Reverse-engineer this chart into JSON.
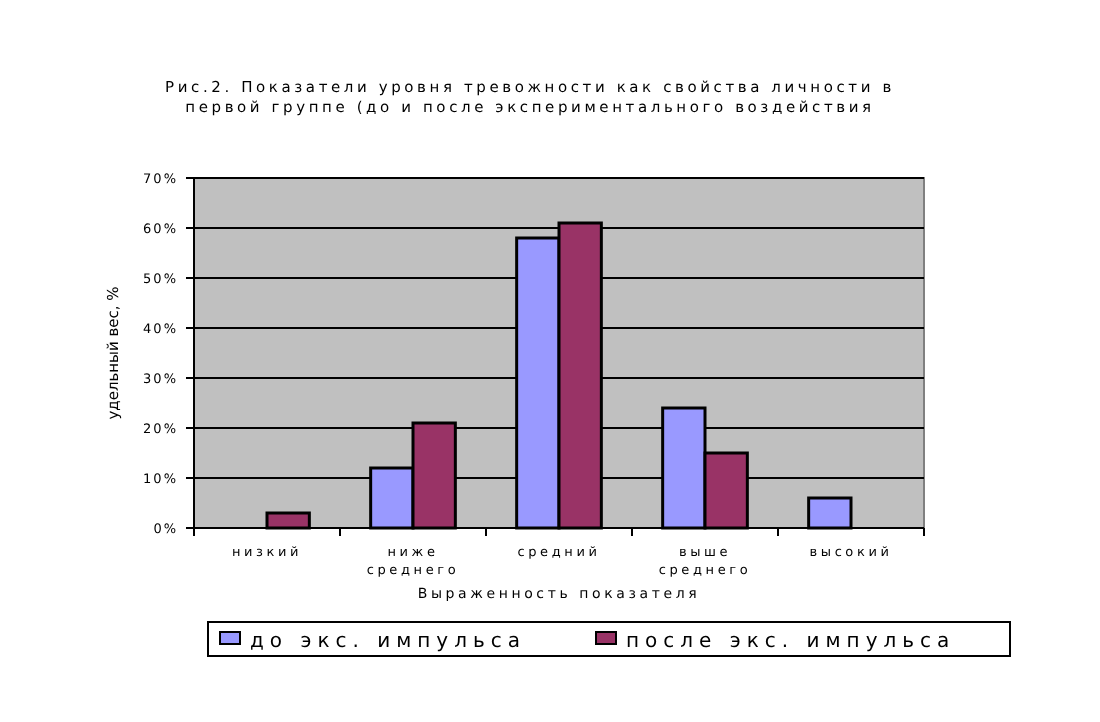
{
  "chart_data": {
    "type": "bar",
    "title": "Рис.2. Показатели уровня тревожности как свойства личности в первой группе (до и после экспериментального воздействия",
    "xlabel": "Выраженность показателя",
    "ylabel": "удельный вес, %",
    "categories": [
      "низкий",
      "ниже среднего",
      "средний",
      "выше среднего",
      "высокий"
    ],
    "series": [
      {
        "name": "до экс. импульса",
        "color": "#9999ff",
        "values": [
          0,
          12,
          58,
          24,
          6
        ]
      },
      {
        "name": "после экс. импульса",
        "color": "#993366",
        "values": [
          3,
          21,
          61,
          15,
          0
        ]
      }
    ],
    "ylim": [
      0,
      70
    ],
    "yticks": [
      {
        "value": 0,
        "label": "0%"
      },
      {
        "value": 10,
        "label": "10%"
      },
      {
        "value": 20,
        "label": "20%"
      },
      {
        "value": 30,
        "label": "30%"
      },
      {
        "value": 40,
        "label": "40%"
      },
      {
        "value": 50,
        "label": "50%"
      },
      {
        "value": 60,
        "label": "60%"
      },
      {
        "value": 70,
        "label": "70%"
      }
    ],
    "grid": "y",
    "legend": "bottom"
  }
}
